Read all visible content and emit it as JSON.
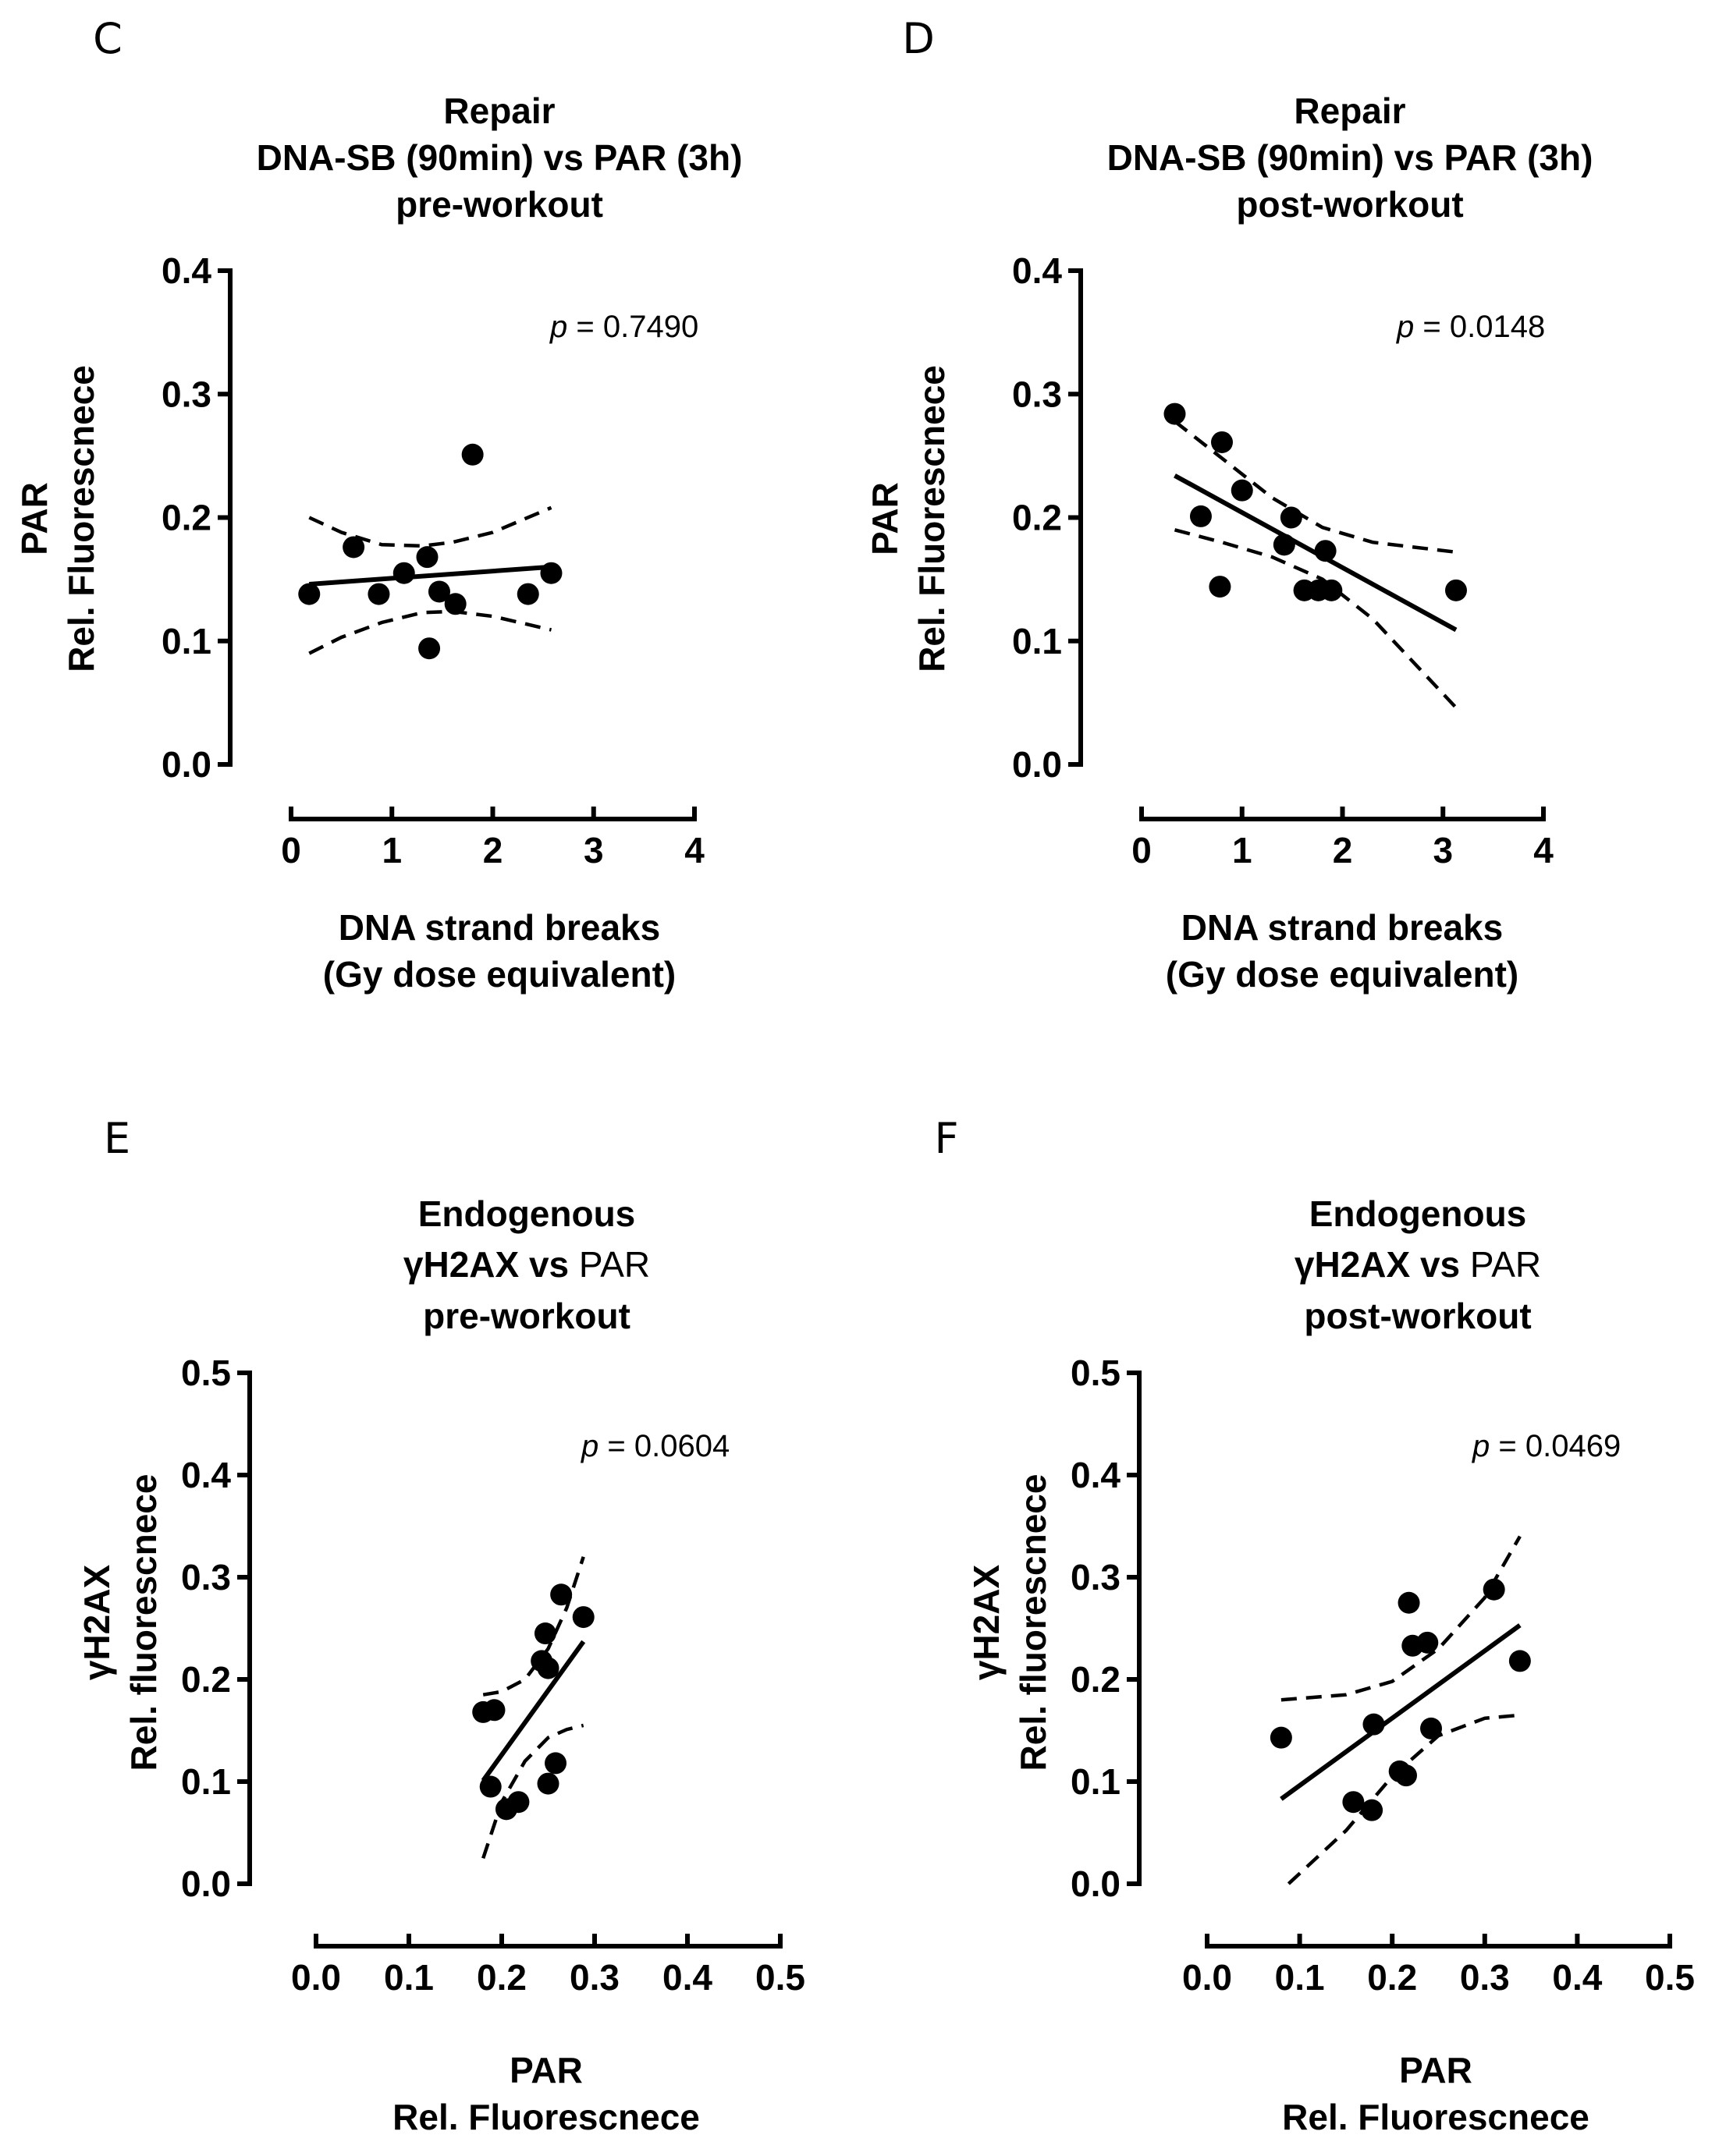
{
  "chart_data": [
    {
      "panel": "C",
      "type": "scatter",
      "title_lines": [
        {
          "parts": [
            {
              "text": "Repair",
              "bold": true
            }
          ]
        },
        {
          "parts": [
            {
              "text": "DNA-SB (90min) vs PAR (3h)",
              "bold": true
            }
          ]
        },
        {
          "parts": [
            {
              "text": "pre-workout",
              "bold": true
            }
          ]
        }
      ],
      "ylabel_lines": [
        "PAR",
        "Rel. Fluorescnece"
      ],
      "xlabel_lines": [
        "DNA strand breaks",
        "(Gy dose equivalent)"
      ],
      "xlim": [
        0,
        4
      ],
      "ylim": [
        0,
        0.4
      ],
      "xticks": [
        "0",
        "1",
        "2",
        "3",
        "4"
      ],
      "yticks": [
        "0.0",
        "0.1",
        "0.2",
        "0.3",
        "0.4"
      ],
      "p_label": "p =",
      "p_value": "0.7490",
      "points": [
        [
          0.18,
          0.138
        ],
        [
          0.62,
          0.176
        ],
        [
          0.87,
          0.138
        ],
        [
          1.12,
          0.155
        ],
        [
          1.35,
          0.168
        ],
        [
          1.37,
          0.094
        ],
        [
          1.47,
          0.14
        ],
        [
          1.63,
          0.13
        ],
        [
          1.8,
          0.251
        ],
        [
          2.35,
          0.138
        ],
        [
          2.58,
          0.155
        ]
      ],
      "fit": [
        [
          0.18,
          0.146
        ],
        [
          2.58,
          0.16
        ]
      ],
      "ci_upper": [
        [
          0.18,
          0.2
        ],
        [
          0.5,
          0.188
        ],
        [
          0.9,
          0.178
        ],
        [
          1.3,
          0.177
        ],
        [
          1.6,
          0.18
        ],
        [
          2.0,
          0.188
        ],
        [
          2.58,
          0.208
        ]
      ],
      "ci_lower": [
        [
          0.18,
          0.09
        ],
        [
          0.5,
          0.103
        ],
        [
          0.9,
          0.115
        ],
        [
          1.3,
          0.123
        ],
        [
          1.6,
          0.124
        ],
        [
          2.0,
          0.12
        ],
        [
          2.58,
          0.109
        ]
      ]
    },
    {
      "panel": "D",
      "type": "scatter",
      "title_lines": [
        {
          "parts": [
            {
              "text": "Repair",
              "bold": true
            }
          ]
        },
        {
          "parts": [
            {
              "text": "DNA-SB (90min) vs PAR (3h)",
              "bold": true
            }
          ]
        },
        {
          "parts": [
            {
              "text": "post-workout",
              "bold": true
            }
          ]
        }
      ],
      "ylabel_lines": [
        "PAR",
        "Rel. Fluorescnece"
      ],
      "xlabel_lines": [
        "DNA strand breaks",
        "(Gy dose equivalent)"
      ],
      "xlim": [
        0,
        4
      ],
      "ylim": [
        0,
        0.4
      ],
      "xticks": [
        "0",
        "1",
        "2",
        "3",
        "4"
      ],
      "yticks": [
        "0.0",
        "0.1",
        "0.2",
        "0.3",
        "0.4"
      ],
      "p_label": "p =",
      "p_value": "0.0148",
      "points": [
        [
          0.33,
          0.284
        ],
        [
          0.59,
          0.201
        ],
        [
          0.78,
          0.144
        ],
        [
          0.8,
          0.261
        ],
        [
          1.0,
          0.222
        ],
        [
          1.42,
          0.178
        ],
        [
          1.49,
          0.2
        ],
        [
          1.62,
          0.141
        ],
        [
          1.76,
          0.141
        ],
        [
          1.83,
          0.173
        ],
        [
          1.89,
          0.141
        ],
        [
          3.13,
          0.141
        ]
      ],
      "fit": [
        [
          0.33,
          0.234
        ],
        [
          3.13,
          0.109
        ]
      ],
      "ci_upper": [
        [
          0.33,
          0.278
        ],
        [
          0.8,
          0.248
        ],
        [
          1.3,
          0.216
        ],
        [
          1.8,
          0.192
        ],
        [
          2.3,
          0.18
        ],
        [
          3.13,
          0.172
        ]
      ],
      "ci_lower": [
        [
          0.33,
          0.19
        ],
        [
          0.8,
          0.18
        ],
        [
          1.3,
          0.168
        ],
        [
          1.8,
          0.15
        ],
        [
          2.3,
          0.118
        ],
        [
          3.13,
          0.046
        ]
      ]
    },
    {
      "panel": "E",
      "type": "scatter",
      "title_lines": [
        {
          "parts": [
            {
              "text": "Endogenous",
              "bold": true
            }
          ]
        },
        {
          "parts": [
            {
              "text": "γH2AX vs",
              "bold": true
            },
            {
              "text": " PAR",
              "bold": false
            }
          ]
        },
        {
          "parts": [
            {
              "text": "pre-workout",
              "bold": true
            }
          ]
        }
      ],
      "ylabel_lines": [
        "γH2AX",
        "Rel. fluorescnece"
      ],
      "xlabel_lines": [
        "PAR",
        "Rel. Fluorescnece"
      ],
      "xlim": [
        0,
        0.5
      ],
      "ylim": [
        0,
        0.5
      ],
      "xticks": [
        "0.0",
        "0.1",
        "0.2",
        "0.3",
        "0.4",
        "0.5"
      ],
      "yticks": [
        "0.0",
        "0.1",
        "0.2",
        "0.3",
        "0.4",
        "0.5"
      ],
      "p_label": "p =",
      "p_value": "0.0604",
      "points": [
        [
          0.18,
          0.168
        ],
        [
          0.188,
          0.095
        ],
        [
          0.192,
          0.17
        ],
        [
          0.205,
          0.073
        ],
        [
          0.218,
          0.08
        ],
        [
          0.243,
          0.218
        ],
        [
          0.247,
          0.245
        ],
        [
          0.25,
          0.211
        ],
        [
          0.25,
          0.098
        ],
        [
          0.258,
          0.118
        ],
        [
          0.264,
          0.283
        ],
        [
          0.288,
          0.261
        ]
      ],
      "fit": [
        [
          0.18,
          0.101
        ],
        [
          0.288,
          0.237
        ]
      ],
      "ci_upper": [
        [
          0.18,
          0.185
        ],
        [
          0.2,
          0.188
        ],
        [
          0.225,
          0.2
        ],
        [
          0.25,
          0.23
        ],
        [
          0.27,
          0.27
        ],
        [
          0.288,
          0.32
        ]
      ],
      "ci_lower": [
        [
          0.18,
          0.025
        ],
        [
          0.2,
          0.08
        ],
        [
          0.225,
          0.12
        ],
        [
          0.25,
          0.143
        ],
        [
          0.27,
          0.151
        ],
        [
          0.288,
          0.155
        ]
      ]
    },
    {
      "panel": "F",
      "type": "scatter",
      "title_lines": [
        {
          "parts": [
            {
              "text": "Endogenous",
              "bold": true
            }
          ]
        },
        {
          "parts": [
            {
              "text": "γH2AX vs",
              "bold": true
            },
            {
              "text": " PAR",
              "bold": false
            }
          ]
        },
        {
          "parts": [
            {
              "text": "post-workout",
              "bold": true
            }
          ]
        }
      ],
      "ylabel_lines": [
        "γH2AX",
        "Rel. fluorescnece"
      ],
      "xlabel_lines": [
        "PAR",
        "Rel. Fluorescnece"
      ],
      "xlim": [
        0,
        0.5
      ],
      "ylim": [
        0,
        0.5
      ],
      "xticks": [
        "0.0",
        "0.1",
        "0.2",
        "0.3",
        "0.4",
        "0.5"
      ],
      "yticks": [
        "0.0",
        "0.1",
        "0.2",
        "0.3",
        "0.4",
        "0.5"
      ],
      "p_label": "p =",
      "p_value": "0.0469",
      "points": [
        [
          0.08,
          0.143
        ],
        [
          0.158,
          0.08
        ],
        [
          0.178,
          0.072
        ],
        [
          0.18,
          0.156
        ],
        [
          0.208,
          0.11
        ],
        [
          0.215,
          0.106
        ],
        [
          0.218,
          0.275
        ],
        [
          0.222,
          0.233
        ],
        [
          0.238,
          0.236
        ],
        [
          0.242,
          0.152
        ],
        [
          0.31,
          0.288
        ],
        [
          0.338,
          0.218
        ]
      ],
      "fit": [
        [
          0.08,
          0.083
        ],
        [
          0.338,
          0.253
        ]
      ],
      "ci_upper": [
        [
          0.08,
          0.18
        ],
        [
          0.15,
          0.185
        ],
        [
          0.2,
          0.198
        ],
        [
          0.25,
          0.23
        ],
        [
          0.3,
          0.28
        ],
        [
          0.338,
          0.34
        ]
      ],
      "ci_lower": [
        [
          0.088,
          0.0
        ],
        [
          0.15,
          0.052
        ],
        [
          0.2,
          0.105
        ],
        [
          0.25,
          0.145
        ],
        [
          0.3,
          0.162
        ],
        [
          0.338,
          0.165
        ]
      ]
    }
  ]
}
